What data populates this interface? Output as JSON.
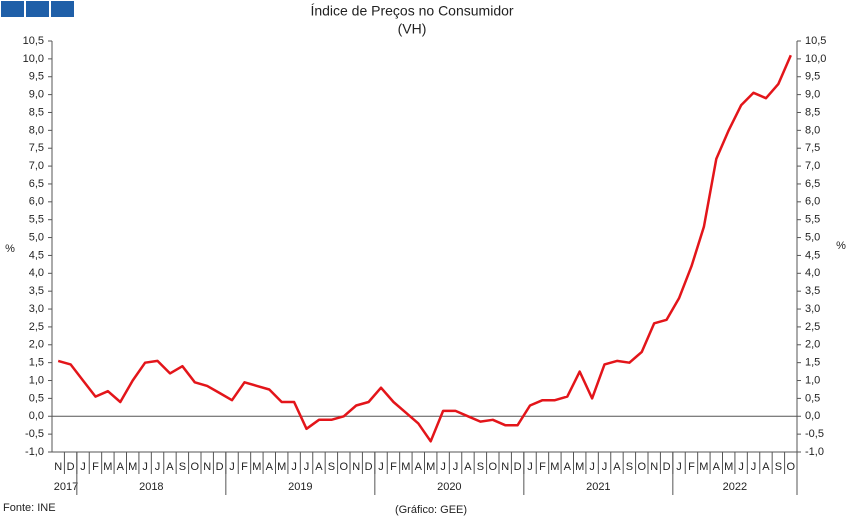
{
  "chart_data": {
    "type": "line",
    "title": "Índice de Preços no Consumidor",
    "subtitle": "(VH)",
    "ylabel": "%",
    "y2label": "%",
    "source": "Fonte: INE",
    "credit": "(Gráfico: GEE)",
    "years": [
      {
        "label": "2017",
        "months": [
          "N",
          "D"
        ]
      },
      {
        "label": "2018",
        "months": [
          "J",
          "F",
          "M",
          "A",
          "M",
          "J",
          "J",
          "A",
          "S",
          "O",
          "N",
          "D"
        ]
      },
      {
        "label": "2019",
        "months": [
          "J",
          "F",
          "M",
          "A",
          "M",
          "J",
          "J",
          "A",
          "S",
          "O",
          "N",
          "D"
        ]
      },
      {
        "label": "2020",
        "months": [
          "J",
          "F",
          "M",
          "A",
          "M",
          "J",
          "J",
          "A",
          "S",
          "O",
          "N",
          "D"
        ]
      },
      {
        "label": "2021",
        "months": [
          "J",
          "F",
          "M",
          "A",
          "M",
          "J",
          "J",
          "A",
          "S",
          "O",
          "N",
          "D"
        ]
      },
      {
        "label": "2022",
        "months": [
          "J",
          "F",
          "M",
          "A",
          "M",
          "J",
          "J",
          "A",
          "S",
          "O"
        ]
      }
    ],
    "series": [
      {
        "color": "#e3151a",
        "values": [
          1.55,
          1.45,
          1.0,
          0.55,
          0.7,
          0.4,
          1.0,
          1.5,
          1.55,
          1.2,
          1.4,
          0.95,
          0.85,
          0.65,
          0.45,
          0.95,
          0.85,
          0.75,
          0.4,
          0.4,
          -0.35,
          -0.1,
          -0.1,
          0.0,
          0.3,
          0.4,
          0.8,
          0.4,
          0.1,
          -0.2,
          -0.7,
          0.15,
          0.15,
          0.0,
          -0.15,
          -0.1,
          -0.25,
          -0.25,
          0.3,
          0.45,
          0.45,
          0.55,
          1.25,
          0.5,
          1.45,
          1.55,
          1.5,
          1.8,
          2.6,
          2.7,
          3.3,
          4.2,
          5.3,
          7.2,
          8.0,
          8.7,
          9.05,
          8.9,
          9.3,
          10.1
        ]
      }
    ],
    "ylim": [
      -1.0,
      10.5
    ],
    "yticks": [
      {
        "value": -1.0,
        "label": "-1,0"
      },
      {
        "value": -0.5,
        "label": "-0,5"
      },
      {
        "value": 0.0,
        "label": "0,0"
      },
      {
        "value": 0.5,
        "label": "0,5"
      },
      {
        "value": 1.0,
        "label": "1,0"
      },
      {
        "value": 1.5,
        "label": "1,5"
      },
      {
        "value": 2.0,
        "label": "2,0"
      },
      {
        "value": 2.5,
        "label": "2,5"
      },
      {
        "value": 3.0,
        "label": "3,0"
      },
      {
        "value": 3.5,
        "label": "3,5"
      },
      {
        "value": 4.0,
        "label": "4,0"
      },
      {
        "value": 4.5,
        "label": "4,5"
      },
      {
        "value": 5.0,
        "label": "5,0"
      },
      {
        "value": 5.5,
        "label": "5,5"
      },
      {
        "value": 6.0,
        "label": "6,0"
      },
      {
        "value": 6.5,
        "label": "6,5"
      },
      {
        "value": 7.0,
        "label": "7,0"
      },
      {
        "value": 7.5,
        "label": "7,5"
      },
      {
        "value": 8.0,
        "label": "8,0"
      },
      {
        "value": 8.5,
        "label": "8,5"
      },
      {
        "value": 9.0,
        "label": "9,0"
      },
      {
        "value": 9.5,
        "label": "9,5"
      },
      {
        "value": 10.0,
        "label": "10,0"
      },
      {
        "value": 10.5,
        "label": "10,5"
      }
    ],
    "y2lim": [
      -1.0,
      10.5
    ],
    "y2ticks": [
      {
        "value": -1.0,
        "label": "-1,0"
      },
      {
        "value": -0.5,
        "label": "-0,5"
      },
      {
        "value": 0.0,
        "label": "0,0"
      },
      {
        "value": 0.5,
        "label": "0,5"
      },
      {
        "value": 1.0,
        "label": "1,0"
      },
      {
        "value": 1.5,
        "label": "1,5"
      },
      {
        "value": 2.0,
        "label": "2,0"
      },
      {
        "value": 2.5,
        "label": "2,5"
      },
      {
        "value": 3.0,
        "label": "3,0"
      },
      {
        "value": 3.5,
        "label": "3,5"
      },
      {
        "value": 4.0,
        "label": "4,0"
      },
      {
        "value": 4.5,
        "label": "4,5"
      },
      {
        "value": 5.0,
        "label": "5,0"
      },
      {
        "value": 5.5,
        "label": "5,5"
      },
      {
        "value": 6.0,
        "label": "6,0"
      },
      {
        "value": 6.5,
        "label": "6,5"
      },
      {
        "value": 7.0,
        "label": "7,0"
      },
      {
        "value": 7.5,
        "label": "7,5"
      },
      {
        "value": 8.0,
        "label": "8,0"
      },
      {
        "value": 8.5,
        "label": "8,5"
      },
      {
        "value": 9.0,
        "label": "9,0"
      },
      {
        "value": 9.5,
        "label": "9,5"
      },
      {
        "value": 10.0,
        "label": "10,0"
      },
      {
        "value": 10.5,
        "label": "10,5"
      }
    ],
    "grid": false
  }
}
